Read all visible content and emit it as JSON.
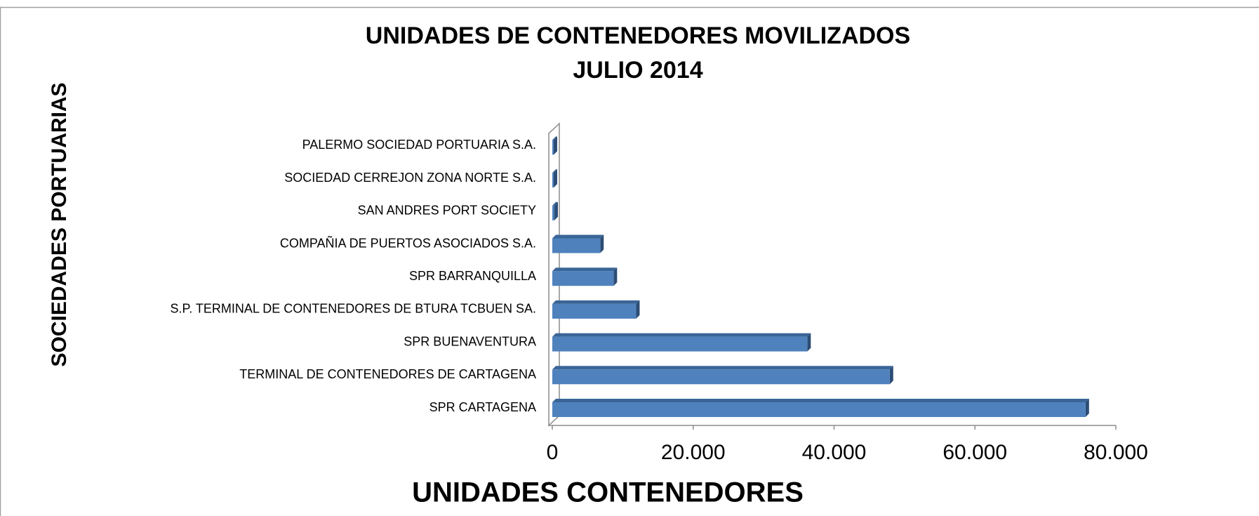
{
  "chart_data": {
    "type": "bar",
    "orientation": "horizontal",
    "title": "UNIDADES DE CONTENEDORES MOVILIZADOS",
    "subtitle": "JULIO 2014",
    "x_label": "UNIDADES CONTENEDORES",
    "y_label": "SOCIEDADES PORTUARIAS",
    "categories": [
      "SPR CARTAGENA",
      "TERMINAL DE CONTENEDORES DE CARTAGENA",
      "SPR BUENAVENTURA",
      "S.P. TERMINAL DE CONTENEDORES DE BTURA TCBUEN SA.",
      "SPR BARRANQUILLA",
      "COMPAÑIA DE PUERTOS ASOCIADOS S.A.",
      "SAN ANDRES PORT SOCIETY",
      "SOCIEDAD CERREJON ZONA NORTE S.A.",
      "PALERMO SOCIEDAD PORTUARIA S.A."
    ],
    "values": [
      75700,
      47900,
      36200,
      11900,
      8700,
      6800,
      300,
      200,
      200
    ],
    "color": "#4f81bd",
    "xlim": [
      0,
      80000
    ],
    "xticks": [
      0,
      {
        "value": 20000,
        "label": "20.000"
      },
      {
        "value": 40000,
        "label": "40.000"
      },
      {
        "value": 60000,
        "label": "60.000"
      },
      {
        "value": 80000,
        "label": "80.000"
      }
    ]
  }
}
